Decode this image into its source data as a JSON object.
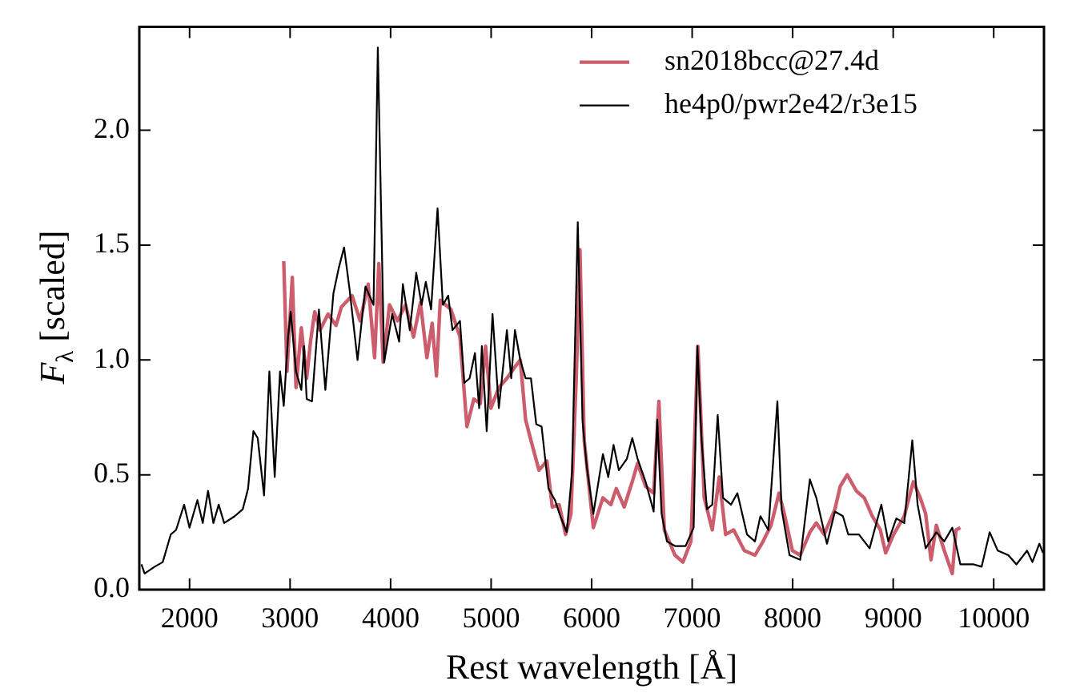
{
  "chart_data": {
    "type": "line",
    "xlabel": "Rest wavelength [Å]",
    "ylabel": "F$_{λ}$ [scaled]",
    "xlim": [
      1500,
      10500
    ],
    "xticks": [
      2000,
      3000,
      4000,
      5000,
      6000,
      7000,
      8000,
      9000,
      10000
    ],
    "ylim": [
      0,
      2.45
    ],
    "yticks": [
      {
        "value": 0,
        "label": "0.0"
      },
      0.5,
      {
        "value": 1,
        "label": "1.0"
      },
      1.5,
      {
        "value": 2,
        "label": "2.0"
      }
    ],
    "grid": false,
    "legend": "top right",
    "marker": "none",
    "line_style": "solid",
    "series": [
      {
        "name": "sn2018bcc@27.4d",
        "color": "#cc5d6c",
        "x": [
          2937,
          2969,
          3022,
          3059,
          3112,
          3165,
          3203,
          3245,
          3298,
          3378,
          3457,
          3510,
          3617,
          3697,
          3777,
          3841,
          3883,
          3926,
          3989,
          4069,
          4148,
          4228,
          4297,
          4361,
          4414,
          4456,
          4494,
          4600,
          4690,
          4759,
          4828,
          4892,
          4945,
          4998,
          5077,
          5157,
          5237,
          5290,
          5343,
          5396,
          5476,
          5555,
          5608,
          5677,
          5741,
          5794,
          5847,
          5884,
          5926,
          6017,
          6112,
          6191,
          6245,
          6324,
          6404,
          6457,
          6537,
          6617,
          6669,
          6723,
          6829,
          6908,
          6988,
          7057,
          7120,
          7200,
          7269,
          7333,
          7413,
          7519,
          7625,
          7705,
          7785,
          7864,
          7917,
          7997,
          8075,
          8171,
          8235,
          8314,
          8420,
          8473,
          8543,
          8633,
          8712,
          8792,
          8872,
          8925,
          9004,
          9110,
          9200,
          9269,
          9323,
          9376,
          9429,
          9508,
          9588,
          9625,
          9668
        ],
        "values": [
          1.43,
          0.95,
          1.36,
          0.88,
          1.14,
          0.92,
          1.08,
          1.21,
          1.13,
          1.2,
          1.15,
          1.23,
          1.28,
          1.17,
          1.33,
          1.01,
          1.42,
          0.99,
          1.24,
          1.17,
          1.24,
          1.1,
          1.25,
          1.01,
          1.16,
          0.93,
          1.26,
          1.22,
          1.1,
          0.71,
          0.83,
          0.81,
          1.06,
          0.79,
          0.88,
          0.92,
          0.97,
          1.0,
          0.74,
          0.65,
          0.52,
          0.56,
          0.36,
          0.37,
          0.24,
          0.33,
          0.92,
          1.48,
          0.65,
          0.27,
          0.4,
          0.37,
          0.44,
          0.36,
          0.47,
          0.55,
          0.45,
          0.42,
          0.82,
          0.26,
          0.15,
          0.12,
          0.21,
          1.06,
          0.4,
          0.26,
          0.49,
          0.24,
          0.26,
          0.17,
          0.15,
          0.21,
          0.28,
          0.42,
          0.33,
          0.17,
          0.15,
          0.25,
          0.29,
          0.24,
          0.35,
          0.45,
          0.5,
          0.43,
          0.4,
          0.32,
          0.26,
          0.16,
          0.24,
          0.32,
          0.47,
          0.4,
          0.33,
          0.13,
          0.28,
          0.17,
          0.07,
          0.26,
          0.27
        ]
      },
      {
        "name": "he4p0/pwr2e42/r3e15",
        "color": "#000000",
        "x": [
          1521,
          1553,
          1653,
          1733,
          1813,
          1866,
          1946,
          1999,
          2078,
          2131,
          2184,
          2237,
          2290,
          2344,
          2450,
          2529,
          2582,
          2635,
          2678,
          2741,
          2794,
          2847,
          2900,
          2937,
          2980,
          3006,
          3059,
          3112,
          3139,
          3165,
          3218,
          3287,
          3351,
          3431,
          3484,
          3537,
          3591,
          3671,
          3750,
          3830,
          3873,
          3936,
          4016,
          4085,
          4122,
          4191,
          4255,
          4308,
          4350,
          4403,
          4467,
          4520,
          4573,
          4616,
          4690,
          4733,
          4786,
          4839,
          4881,
          4908,
          4956,
          5014,
          5077,
          5157,
          5200,
          5237,
          5290,
          5343,
          5396,
          5449,
          5502,
          5571,
          5635,
          5688,
          5752,
          5805,
          5862,
          5910,
          5953,
          6017,
          6112,
          6165,
          6218,
          6271,
          6351,
          6404,
          6457,
          6537,
          6617,
          6653,
          6696,
          6749,
          6829,
          6935,
          7015,
          7052,
          7094,
          7147,
          7200,
          7254,
          7307,
          7386,
          7450,
          7546,
          7625,
          7679,
          7758,
          7848,
          7890,
          7969,
          8075,
          8171,
          8235,
          8341,
          8420,
          8500,
          8553,
          8659,
          8765,
          8882,
          8951,
          9031,
          9110,
          9190,
          9243,
          9323,
          9429,
          9508,
          9588,
          9668,
          9801,
          9880,
          9960,
          10040,
          10146,
          10226,
          10332,
          10385,
          10454,
          10490
        ],
        "values": [
          0.11,
          0.07,
          0.1,
          0.12,
          0.24,
          0.26,
          0.37,
          0.27,
          0.39,
          0.29,
          0.43,
          0.29,
          0.37,
          0.29,
          0.32,
          0.35,
          0.44,
          0.69,
          0.66,
          0.41,
          0.95,
          0.49,
          0.95,
          0.8,
          1.1,
          1.21,
          0.95,
          0.87,
          1.06,
          0.83,
          0.82,
          1.22,
          0.87,
          1.29,
          1.4,
          1.49,
          1.31,
          1.0,
          1.32,
          1.24,
          2.36,
          0.99,
          1.2,
          1.08,
          1.33,
          1.13,
          1.38,
          1.24,
          1.34,
          1.22,
          1.66,
          1.24,
          1.28,
          1.13,
          1.17,
          0.9,
          0.92,
          1.03,
          0.79,
          1.06,
          0.69,
          1.2,
          0.79,
          1.13,
          0.92,
          1.13,
          1.0,
          0.92,
          0.92,
          0.72,
          0.71,
          0.44,
          0.39,
          0.32,
          0.25,
          0.51,
          1.6,
          0.73,
          0.53,
          0.33,
          0.59,
          0.49,
          0.63,
          0.52,
          0.57,
          0.66,
          0.57,
          0.47,
          0.34,
          0.74,
          0.33,
          0.21,
          0.19,
          0.19,
          0.27,
          1.06,
          0.65,
          0.35,
          0.37,
          0.76,
          0.4,
          0.37,
          0.42,
          0.24,
          0.21,
          0.32,
          0.26,
          0.82,
          0.35,
          0.15,
          0.13,
          0.48,
          0.4,
          0.2,
          0.34,
          0.32,
          0.24,
          0.24,
          0.18,
          0.37,
          0.21,
          0.31,
          0.29,
          0.65,
          0.37,
          0.18,
          0.25,
          0.21,
          0.27,
          0.11,
          0.11,
          0.1,
          0.25,
          0.17,
          0.15,
          0.11,
          0.17,
          0.12,
          0.2,
          0.16
        ]
      }
    ]
  }
}
